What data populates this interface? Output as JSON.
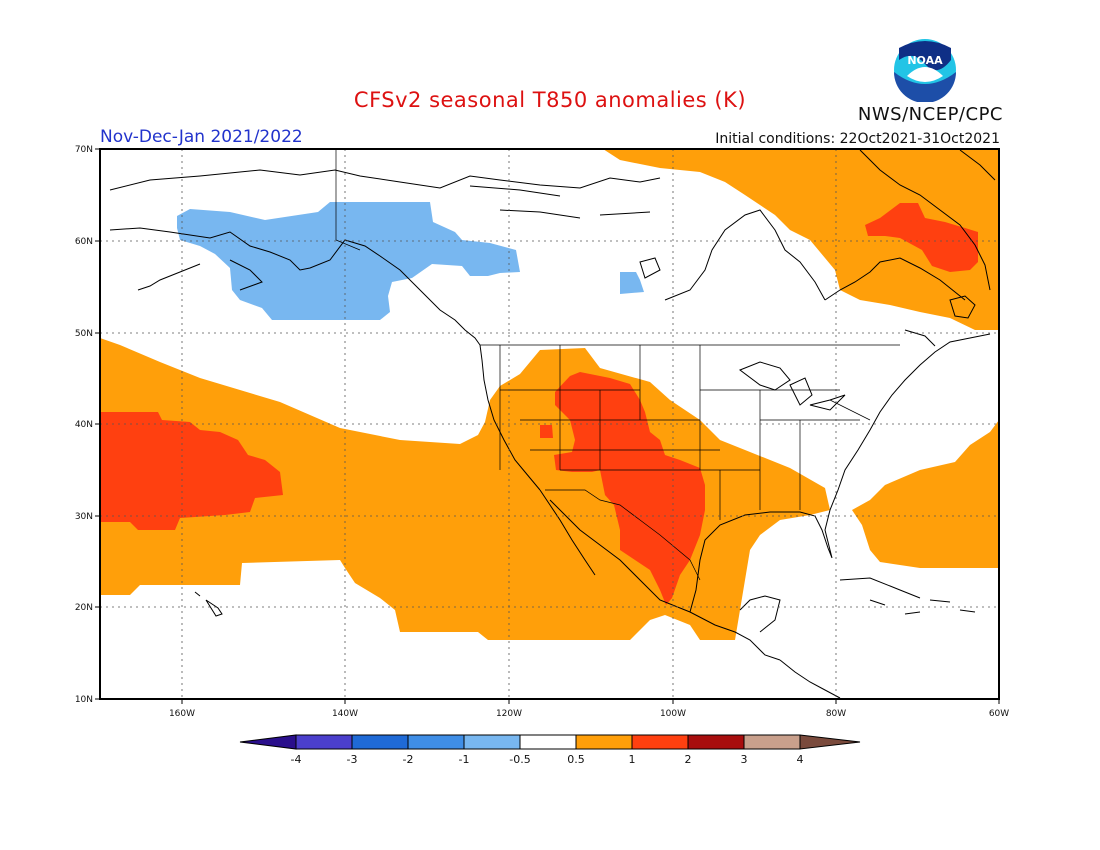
{
  "header": {
    "title": "CFSv2 seasonal T850 anomalies (K)",
    "period": "Nov-Dec-Jan 2021/2022",
    "initial_conditions": "Initial conditions: 22Oct2021-31Oct2021",
    "agency": "NWS/NCEP/CPC",
    "logo_text": "NOAA"
  },
  "map": {
    "latitude_labels": [
      "70N",
      "60N",
      "50N",
      "40N",
      "30N",
      "20N",
      "10N"
    ],
    "longitude_labels": [
      "160W",
      "140W",
      "120W",
      "100W",
      "80W",
      "60W"
    ],
    "extent": {
      "lon_min": -170,
      "lon_max": -60,
      "lat_min": 10,
      "lat_max": 70
    }
  },
  "colorbar": {
    "labels": [
      "-4",
      "-3",
      "-2",
      "-1",
      "-0.5",
      "0.5",
      "1",
      "2",
      "3",
      "4"
    ],
    "colors": {
      "below_-4": "#2a0f8c",
      "-4_-3": "#4b3fcc",
      "-3_-2": "#1f6ad6",
      "-2_-1": "#3f8ee6",
      "-1_-0.5": "#78b7f0",
      "-0.5_0.5": "#ffffff",
      "0.5_1": "#ff9f0a",
      "1_2": "#ff4010",
      "2_3": "#a80d0d",
      "3_4": "#c9a08c",
      "above_4": "#7a4a3c"
    }
  }
}
